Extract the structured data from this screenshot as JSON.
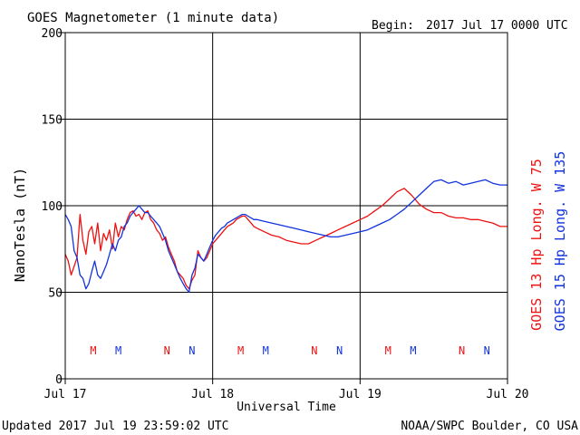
{
  "header": {
    "title": "GOES Magnetometer (1 minute data)",
    "begin_label": "Begin:",
    "begin_value": "2017 Jul 17 0000 UTC"
  },
  "footer": {
    "updated": "Updated 2017 Jul 19 23:59:02 UTC",
    "source": "NOAA/SWPC Boulder, CO USA"
  },
  "chart_data": {
    "type": "line",
    "title": "GOES Magnetometer (1 minute data)",
    "xlabel": "Universal Time",
    "ylabel": "NanoTesla (nT)",
    "ylim": [
      0,
      200
    ],
    "xlim_days": [
      0,
      3
    ],
    "grid": true,
    "y_ticks": [
      "0",
      "50",
      "100",
      "150",
      "200"
    ],
    "x_ticks": [
      "Jul 17",
      "Jul 18",
      "Jul 19",
      "Jul 20"
    ],
    "colors": {
      "goes13": "#ee1111",
      "goes15": "#1133dd"
    },
    "series": [
      {
        "name": "GOES 13 Hp  Long. W 75",
        "color": "#ee1111",
        "x": [
          0,
          0.02,
          0.04,
          0.06,
          0.08,
          0.1,
          0.12,
          0.14,
          0.16,
          0.18,
          0.2,
          0.22,
          0.24,
          0.26,
          0.28,
          0.3,
          0.32,
          0.34,
          0.36,
          0.38,
          0.4,
          0.42,
          0.44,
          0.46,
          0.48,
          0.5,
          0.52,
          0.54,
          0.56,
          0.58,
          0.6,
          0.62,
          0.64,
          0.66,
          0.68,
          0.7,
          0.72,
          0.74,
          0.76,
          0.78,
          0.8,
          0.82,
          0.84,
          0.86,
          0.88,
          0.9,
          0.92,
          0.94,
          0.96,
          0.98,
          1.0,
          1.02,
          1.04,
          1.06,
          1.08,
          1.1,
          1.12,
          1.14,
          1.16,
          1.18,
          1.2,
          1.22,
          1.24,
          1.26,
          1.28,
          1.3,
          1.35,
          1.4,
          1.45,
          1.5,
          1.55,
          1.6,
          1.65,
          1.7,
          1.75,
          1.8,
          1.85,
          1.9,
          1.95,
          2.0,
          2.05,
          2.1,
          2.15,
          2.2,
          2.25,
          2.3,
          2.35,
          2.4,
          2.45,
          2.5,
          2.55,
          2.6,
          2.65,
          2.7,
          2.75,
          2.8,
          2.85,
          2.9,
          2.95,
          3.0
        ],
        "y": [
          72,
          68,
          60,
          65,
          70,
          95,
          80,
          72,
          85,
          88,
          78,
          90,
          74,
          84,
          80,
          86,
          75,
          90,
          82,
          88,
          86,
          92,
          96,
          97,
          94,
          95,
          92,
          96,
          97,
          92,
          90,
          86,
          84,
          80,
          82,
          76,
          72,
          68,
          62,
          60,
          58,
          54,
          52,
          57,
          60,
          74,
          70,
          68,
          70,
          74,
          78,
          80,
          82,
          84,
          86,
          88,
          89,
          90,
          92,
          93,
          94,
          94,
          92,
          90,
          88,
          87,
          85,
          83,
          82,
          80,
          79,
          78,
          78,
          80,
          82,
          84,
          86,
          88,
          90,
          92,
          94,
          97,
          100,
          104,
          108,
          110,
          106,
          101,
          98,
          96,
          96,
          94,
          93,
          93,
          92,
          92,
          91,
          90,
          88,
          88
        ],
        "x_markers": [
          {
            "label": "M",
            "x": 0.19
          },
          {
            "label": "N",
            "x": 0.69
          },
          {
            "label": "M",
            "x": 1.19
          },
          {
            "label": "N",
            "x": 1.69
          },
          {
            "label": "M",
            "x": 2.19
          },
          {
            "label": "N",
            "x": 2.69
          }
        ]
      },
      {
        "name": "GOES 15 Hp  Long. W 135",
        "color": "#1133dd",
        "x": [
          0,
          0.02,
          0.04,
          0.06,
          0.08,
          0.1,
          0.12,
          0.14,
          0.16,
          0.18,
          0.2,
          0.22,
          0.24,
          0.26,
          0.28,
          0.3,
          0.32,
          0.34,
          0.36,
          0.38,
          0.4,
          0.42,
          0.44,
          0.46,
          0.48,
          0.5,
          0.52,
          0.54,
          0.56,
          0.58,
          0.6,
          0.62,
          0.64,
          0.66,
          0.68,
          0.7,
          0.72,
          0.74,
          0.76,
          0.78,
          0.8,
          0.82,
          0.84,
          0.86,
          0.88,
          0.9,
          0.92,
          0.94,
          0.96,
          0.98,
          1.0,
          1.02,
          1.04,
          1.06,
          1.08,
          1.1,
          1.12,
          1.14,
          1.16,
          1.18,
          1.2,
          1.22,
          1.24,
          1.26,
          1.28,
          1.3,
          1.35,
          1.4,
          1.45,
          1.5,
          1.55,
          1.6,
          1.65,
          1.7,
          1.75,
          1.8,
          1.85,
          1.9,
          1.95,
          2.0,
          2.05,
          2.1,
          2.15,
          2.2,
          2.25,
          2.3,
          2.35,
          2.4,
          2.45,
          2.5,
          2.55,
          2.6,
          2.65,
          2.7,
          2.75,
          2.8,
          2.85,
          2.9,
          2.95,
          3.0
        ],
        "y": [
          95,
          92,
          88,
          74,
          70,
          60,
          58,
          52,
          55,
          62,
          68,
          60,
          58,
          62,
          66,
          72,
          78,
          74,
          80,
          82,
          88,
          90,
          94,
          96,
          98,
          100,
          98,
          96,
          96,
          94,
          92,
          90,
          88,
          84,
          80,
          74,
          70,
          66,
          62,
          58,
          55,
          52,
          50,
          60,
          64,
          72,
          70,
          68,
          72,
          76,
          80,
          83,
          85,
          87,
          88,
          90,
          91,
          92,
          93,
          94,
          95,
          95,
          94,
          93,
          92,
          92,
          91,
          90,
          89,
          88,
          87,
          86,
          85,
          84,
          83,
          82,
          82,
          83,
          84,
          85,
          86,
          88,
          90,
          92,
          95,
          98,
          102,
          106,
          110,
          114,
          115,
          113,
          114,
          112,
          113,
          114,
          115,
          113,
          112,
          112
        ],
        "x_markers": [
          {
            "label": "M",
            "x": 0.36
          },
          {
            "label": "N",
            "x": 0.86
          },
          {
            "label": "M",
            "x": 1.36
          },
          {
            "label": "N",
            "x": 1.86
          },
          {
            "label": "M",
            "x": 2.36
          },
          {
            "label": "N",
            "x": 2.86
          }
        ]
      }
    ]
  }
}
